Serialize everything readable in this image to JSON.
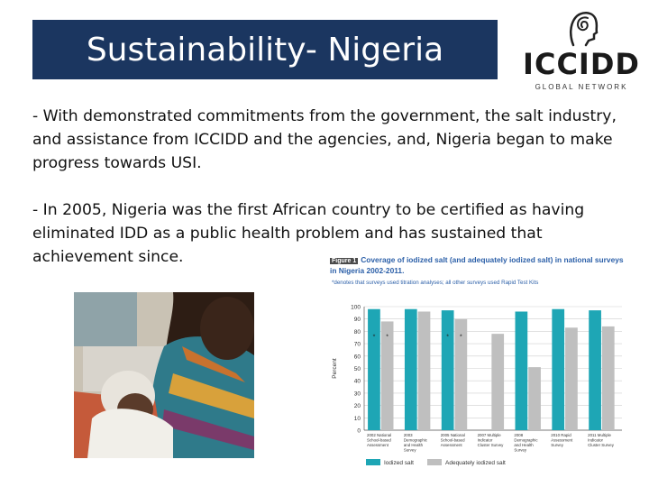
{
  "slide": {
    "title": "Sustainability- Nigeria",
    "bullets": [
      "- With demonstrated commitments from the government, the salt industry, and assistance from ICCIDD and the agencies, and, Nigeria began to make progress towards USI.",
      "- In 2005, Nigeria was the first African country to be certified as having eliminated IDD as a public health problem and has sustained that achievement since."
    ]
  },
  "logo": {
    "name": "ICCIDD",
    "subtitle": "GLOBAL NETWORK"
  },
  "colors": {
    "title_bg": "#1b3660",
    "iodized": "#1ea6b5",
    "adequate": "#bfbfbf"
  },
  "chart_data": {
    "type": "bar",
    "figure_label": "Figure 1",
    "title": "Coverage of iodized salt (and adequately iodized salt) in national surveys in Nigeria 2002-2011.",
    "note": "*denotes that surveys used titration analyses; all other surveys used Rapid Test Kits",
    "ylabel": "Percent",
    "ylim": [
      0,
      100
    ],
    "yticks": [
      0,
      10,
      20,
      30,
      40,
      50,
      60,
      70,
      80,
      90,
      100
    ],
    "grid": true,
    "legend_position": "bottom",
    "categories": [
      "2002 National School-based Assessment",
      "2003 Demographic and Health Survey",
      "2005 National School-based Assessment",
      "2007 Multiple Indicator Cluster Survey",
      "2008 Demographic and Health Survey",
      "2010 Rapid Assessment Survey",
      "2011 Multiple Indicator Cluster Survey"
    ],
    "series": [
      {
        "name": "Iodized salt",
        "values": [
          98,
          98,
          97,
          null,
          96,
          98,
          97
        ]
      },
      {
        "name": "Adequately iodized salt",
        "values": [
          88,
          96,
          90,
          78,
          51,
          83,
          84
        ]
      }
    ],
    "annotations": [
      {
        "category": 0,
        "text": "*"
      },
      {
        "category": 0,
        "text": "*"
      },
      {
        "category": 2,
        "text": "*"
      },
      {
        "category": 2,
        "text": "*"
      }
    ]
  }
}
